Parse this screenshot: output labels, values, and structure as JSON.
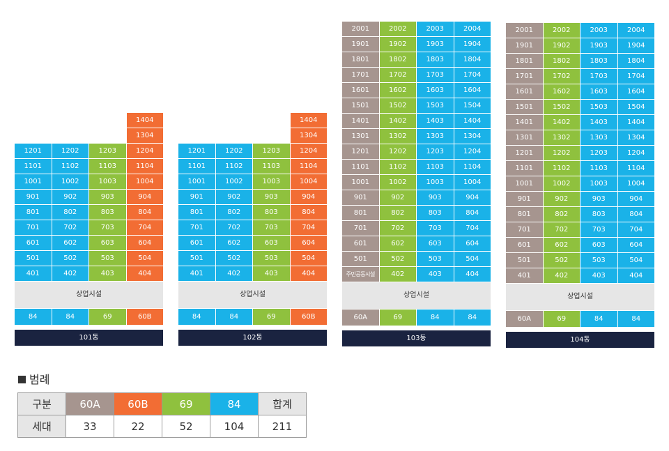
{
  "colors": {
    "60A": "#a6958f",
    "60B": "#f26d34",
    "69": "#8fc13e",
    "84": "#1ab2e8"
  },
  "buildings": [
    {
      "label": "101동",
      "facility": "상업시설",
      "column_types": [
        "84",
        "84",
        "69",
        "60B"
      ],
      "floors": [
        [
          "",
          "",
          "",
          "1404"
        ],
        [
          "",
          "",
          "",
          "1304"
        ],
        [
          "1201",
          "1202",
          "1203",
          "1204"
        ],
        [
          "1101",
          "1102",
          "1103",
          "1104"
        ],
        [
          "1001",
          "1002",
          "1003",
          "1004"
        ],
        [
          "901",
          "902",
          "903",
          "904"
        ],
        [
          "801",
          "802",
          "803",
          "804"
        ],
        [
          "701",
          "702",
          "703",
          "704"
        ],
        [
          "601",
          "602",
          "603",
          "604"
        ],
        [
          "501",
          "502",
          "503",
          "504"
        ],
        [
          "401",
          "402",
          "403",
          "404"
        ]
      ],
      "cell_types": null
    },
    {
      "label": "102동",
      "facility": "상업시설",
      "column_types": [
        "84",
        "84",
        "69",
        "60B"
      ],
      "floors": [
        [
          "",
          "",
          "",
          "1404"
        ],
        [
          "",
          "",
          "",
          "1304"
        ],
        [
          "1201",
          "1202",
          "1203",
          "1204"
        ],
        [
          "1101",
          "1102",
          "1103",
          "1104"
        ],
        [
          "1001",
          "1002",
          "1003",
          "1004"
        ],
        [
          "901",
          "902",
          "903",
          "904"
        ],
        [
          "801",
          "802",
          "803",
          "804"
        ],
        [
          "701",
          "702",
          "703",
          "704"
        ],
        [
          "601",
          "602",
          "603",
          "604"
        ],
        [
          "501",
          "502",
          "503",
          "504"
        ],
        [
          "401",
          "402",
          "403",
          "404"
        ]
      ]
    },
    {
      "label": "103동",
      "facility": "상업시설",
      "column_types": [
        "60A",
        "69",
        "84",
        "84"
      ],
      "floors": [
        [
          "2001",
          "2002",
          "2003",
          "2004"
        ],
        [
          "1901",
          "1902",
          "1903",
          "1904"
        ],
        [
          "1801",
          "1802",
          "1803",
          "1804"
        ],
        [
          "1701",
          "1702",
          "1703",
          "1704"
        ],
        [
          "1601",
          "1602",
          "1603",
          "1604"
        ],
        [
          "1501",
          "1502",
          "1503",
          "1504"
        ],
        [
          "1401",
          "1402",
          "1403",
          "1404"
        ],
        [
          "1301",
          "1302",
          "1303",
          "1304"
        ],
        [
          "1201",
          "1202",
          "1203",
          "1204"
        ],
        [
          "1101",
          "1102",
          "1103",
          "1104"
        ],
        [
          "1001",
          "1002",
          "1003",
          "1004"
        ],
        [
          "901",
          "902",
          "903",
          "904"
        ],
        [
          "801",
          "802",
          "803",
          "804"
        ],
        [
          "701",
          "702",
          "703",
          "704"
        ],
        [
          "601",
          "602",
          "603",
          "604"
        ],
        [
          "501",
          "502",
          "503",
          "504"
        ],
        [
          "주민공동시설",
          "402",
          "403",
          "404"
        ]
      ]
    },
    {
      "label": "104동",
      "facility": "상업시설",
      "column_types": [
        "60A",
        "69",
        "84",
        "84"
      ],
      "floors": [
        [
          "2001",
          "2002",
          "2003",
          "2004"
        ],
        [
          "1901",
          "1902",
          "1903",
          "1904"
        ],
        [
          "1801",
          "1802",
          "1803",
          "1804"
        ],
        [
          "1701",
          "1702",
          "1703",
          "1704"
        ],
        [
          "1601",
          "1602",
          "1603",
          "1604"
        ],
        [
          "1501",
          "1502",
          "1503",
          "1504"
        ],
        [
          "1401",
          "1402",
          "1403",
          "1404"
        ],
        [
          "1301",
          "1302",
          "1303",
          "1304"
        ],
        [
          "1201",
          "1202",
          "1203",
          "1204"
        ],
        [
          "1101",
          "1102",
          "1103",
          "1104"
        ],
        [
          "1001",
          "1002",
          "1003",
          "1004"
        ],
        [
          "901",
          "902",
          "903",
          "904"
        ],
        [
          "801",
          "802",
          "803",
          "804"
        ],
        [
          "701",
          "702",
          "703",
          "704"
        ],
        [
          "601",
          "602",
          "603",
          "604"
        ],
        [
          "501",
          "502",
          "503",
          "504"
        ],
        [
          "401",
          "402",
          "403",
          "404"
        ]
      ]
    }
  ],
  "legend": {
    "title": "범례",
    "header_label": "구분",
    "row_label": "세대",
    "types": [
      "60A",
      "60B",
      "69",
      "84"
    ],
    "total_label": "합계",
    "counts": [
      "33",
      "22",
      "52",
      "104"
    ],
    "total": "211"
  }
}
